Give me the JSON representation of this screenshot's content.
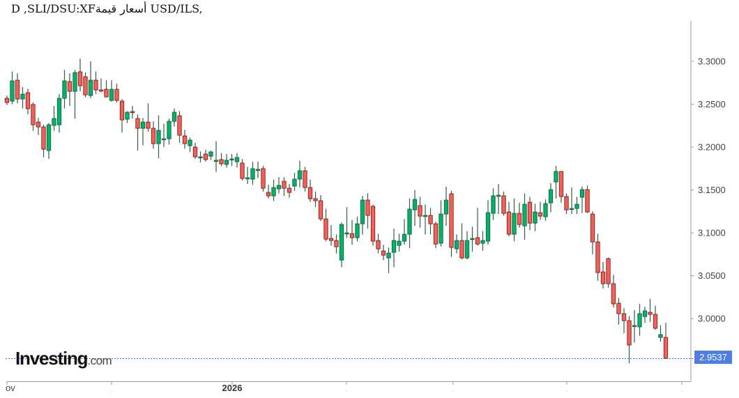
{
  "title": "USD/ILS, قيمة:XF/USD/ILS, D",
  "title_display": "D ,SLI/DSU:XFأسعار قيمة USD/ILS,",
  "logo": {
    "main": "Investing",
    "suffix": ".com"
  },
  "colors": {
    "up": "#00b36b",
    "down": "#f4605a",
    "up_border": "#1e5c3a",
    "down_border": "#7a1f1a",
    "wick": "#2e5e46",
    "price_line": "#3b6fe0",
    "badge": "#4f7de3",
    "axis": "#999999"
  },
  "chart_data": {
    "type": "candlestick",
    "title": "USD/ILS",
    "interval": "D",
    "yticks": [
      "3.3000",
      "3.2500",
      "3.2000",
      "3.1500",
      "3.1000",
      "3.0500",
      "3.0000"
    ],
    "ytick_values": [
      3.3,
      3.25,
      3.2,
      3.15,
      3.1,
      3.05,
      3.0
    ],
    "ylim": [
      2.935,
      3.345
    ],
    "xtick_labels": [
      "ov",
      "",
      "2026",
      "",
      "",
      "",
      ""
    ],
    "last_price": "2.9537",
    "last_price_value": 2.9537,
    "grid": false,
    "candles_ohlc": [
      [
        3.2569,
        3.26,
        3.249,
        3.252
      ],
      [
        3.2536,
        3.288,
        3.25,
        3.2772
      ],
      [
        3.278,
        3.286,
        3.251,
        3.2561
      ],
      [
        3.2561,
        3.27,
        3.245,
        3.2617
      ],
      [
        3.2634,
        3.268,
        3.238,
        3.2447
      ],
      [
        3.2496,
        3.252,
        3.219,
        3.226
      ],
      [
        3.2292,
        3.234,
        3.214,
        3.2235
      ],
      [
        3.2235,
        3.226,
        3.188,
        3.1975
      ],
      [
        3.1959,
        3.228,
        3.186,
        3.226
      ],
      [
        3.2252,
        3.248,
        3.219,
        3.2333
      ],
      [
        3.226,
        3.262,
        3.217,
        3.2569
      ],
      [
        3.2569,
        3.29,
        3.245,
        3.2772
      ],
      [
        3.2764,
        3.286,
        3.248,
        3.265
      ],
      [
        3.265,
        3.29,
        3.233,
        3.2869
      ],
      [
        3.2878,
        3.303,
        3.265,
        3.2715
      ],
      [
        3.2821,
        3.287,
        3.258,
        3.2609
      ],
      [
        3.2601,
        3.3,
        3.257,
        3.278
      ],
      [
        3.278,
        3.288,
        3.262,
        3.2666
      ],
      [
        3.2666,
        3.28,
        3.264,
        3.266
      ],
      [
        3.2674,
        3.278,
        3.258,
        3.2585
      ],
      [
        3.2544,
        3.278,
        3.253,
        3.2674
      ],
      [
        3.2674,
        3.274,
        3.252,
        3.2544
      ],
      [
        3.2536,
        3.256,
        3.217,
        3.2317
      ],
      [
        3.2325,
        3.242,
        3.228,
        3.2406
      ],
      [
        3.2414,
        3.248,
        3.233,
        3.241
      ],
      [
        3.2333,
        3.238,
        3.196,
        3.2219
      ],
      [
        3.2219,
        3.234,
        3.202,
        3.2292
      ],
      [
        3.2292,
        3.251,
        3.218,
        3.2219
      ],
      [
        3.2219,
        3.23,
        3.198,
        3.204
      ],
      [
        3.204,
        3.237,
        3.187,
        3.2195
      ],
      [
        3.2097,
        3.227,
        3.2,
        3.2097
      ],
      [
        3.2097,
        3.233,
        3.203,
        3.23
      ],
      [
        3.23,
        3.245,
        3.224,
        3.2406
      ],
      [
        3.2365,
        3.242,
        3.205,
        3.2138
      ],
      [
        3.213,
        3.22,
        3.198,
        3.204
      ],
      [
        3.2016,
        3.211,
        3.194,
        3.2081
      ],
      [
        3.2,
        3.205,
        3.186,
        3.1886
      ],
      [
        3.1886,
        3.195,
        3.182,
        3.1886
      ],
      [
        3.1919,
        3.197,
        3.183,
        3.1854
      ],
      [
        3.1894,
        3.196,
        3.185,
        3.1943
      ],
      [
        3.1846,
        3.207,
        3.171,
        3.1846
      ],
      [
        3.1854,
        3.193,
        3.178,
        3.1805
      ],
      [
        3.1797,
        3.192,
        3.176,
        3.1846
      ],
      [
        3.1862,
        3.192,
        3.178,
        3.1862
      ],
      [
        3.1829,
        3.193,
        3.176,
        3.1878
      ],
      [
        3.1813,
        3.186,
        3.161,
        3.1634
      ],
      [
        3.1642,
        3.177,
        3.157,
        3.1642
      ],
      [
        3.1626,
        3.183,
        3.156,
        3.1748
      ],
      [
        3.174,
        3.183,
        3.164,
        3.174
      ],
      [
        3.1748,
        3.178,
        3.148,
        3.152
      ],
      [
        3.1471,
        3.156,
        3.14,
        3.1431
      ],
      [
        3.1431,
        3.162,
        3.137,
        3.1528
      ],
      [
        3.1512,
        3.165,
        3.146,
        3.1553
      ],
      [
        3.1601,
        3.165,
        3.143,
        3.152
      ],
      [
        3.152,
        3.157,
        3.141,
        3.1471
      ],
      [
        3.1545,
        3.17,
        3.149,
        3.1626
      ],
      [
        3.1626,
        3.184,
        3.153,
        3.1724
      ],
      [
        3.1724,
        3.177,
        3.148,
        3.1528
      ],
      [
        3.1528,
        3.162,
        3.136,
        3.1398
      ],
      [
        3.1398,
        3.148,
        3.13,
        3.1374
      ],
      [
        3.1374,
        3.144,
        3.114,
        3.1162
      ],
      [
        3.1162,
        3.128,
        3.09,
        3.0926
      ],
      [
        3.0934,
        3.109,
        3.085,
        3.091
      ],
      [
        3.091,
        3.098,
        3.076,
        3.0837
      ],
      [
        3.0682,
        3.112,
        3.06,
        3.1097
      ],
      [
        3.0999,
        3.13,
        3.094,
        3.0999
      ],
      [
        3.0991,
        3.115,
        3.086,
        3.0943
      ],
      [
        3.0943,
        3.119,
        3.09,
        3.1105
      ],
      [
        3.1105,
        3.143,
        3.098,
        3.1382
      ],
      [
        3.1382,
        3.146,
        3.105,
        3.1203
      ],
      [
        3.1309,
        3.133,
        3.085,
        3.0902
      ],
      [
        3.091,
        3.099,
        3.076,
        3.0813
      ],
      [
        3.0788,
        3.086,
        3.068,
        3.0739
      ],
      [
        3.0707,
        3.083,
        3.053,
        3.0764
      ],
      [
        3.0772,
        3.105,
        3.06,
        3.091
      ],
      [
        3.0853,
        3.099,
        3.078,
        3.0902
      ],
      [
        3.0902,
        3.116,
        3.086,
        3.0983
      ],
      [
        3.0983,
        3.14,
        3.082,
        3.1276
      ],
      [
        3.1268,
        3.15,
        3.108,
        3.139
      ],
      [
        3.1317,
        3.142,
        3.106,
        3.1195
      ],
      [
        3.1203,
        3.133,
        3.098,
        3.1203
      ],
      [
        3.1203,
        3.129,
        3.098,
        3.1105
      ],
      [
        3.1105,
        3.113,
        3.082,
        3.0869
      ],
      [
        3.0878,
        3.138,
        3.084,
        3.1219
      ],
      [
        3.1219,
        3.154,
        3.108,
        3.1382
      ],
      [
        3.1455,
        3.149,
        3.072,
        3.0829
      ],
      [
        3.0813,
        3.098,
        3.076,
        3.091
      ],
      [
        3.091,
        3.111,
        3.069,
        3.0707
      ],
      [
        3.0707,
        3.102,
        3.069,
        3.091
      ],
      [
        3.0934,
        3.107,
        3.078,
        3.0934
      ],
      [
        3.0943,
        3.129,
        3.085,
        3.0869
      ],
      [
        3.0878,
        3.102,
        3.079,
        3.091
      ],
      [
        3.0902,
        3.138,
        3.086,
        3.1235
      ],
      [
        3.1227,
        3.152,
        3.115,
        3.1431
      ],
      [
        3.1439,
        3.157,
        3.122,
        3.1439
      ],
      [
        3.1431,
        3.148,
        3.12,
        3.1227
      ],
      [
        3.1243,
        3.136,
        3.096,
        3.0983
      ],
      [
        3.0983,
        3.14,
        3.09,
        3.1227
      ],
      [
        3.1227,
        3.135,
        3.106,
        3.1097
      ],
      [
        3.1081,
        3.146,
        3.092,
        3.1333
      ],
      [
        3.1357,
        3.142,
        3.103,
        3.1113
      ],
      [
        3.1113,
        3.134,
        3.102,
        3.1243
      ],
      [
        3.1235,
        3.136,
        3.115,
        3.1195
      ],
      [
        3.1187,
        3.139,
        3.114,
        3.1341
      ],
      [
        3.1349,
        3.158,
        3.124,
        3.1504
      ],
      [
        3.1593,
        3.178,
        3.14,
        3.1715
      ],
      [
        3.1715,
        3.172,
        3.135,
        3.1423
      ],
      [
        3.1423,
        3.146,
        3.122,
        3.1268
      ],
      [
        3.1276,
        3.153,
        3.122,
        3.1284
      ],
      [
        3.1284,
        3.142,
        3.122,
        3.1333
      ],
      [
        3.1415,
        3.154,
        3.123,
        3.1504
      ],
      [
        3.1504,
        3.155,
        3.123,
        3.1243
      ],
      [
        3.1219,
        3.125,
        3.075,
        3.0894
      ],
      [
        3.0894,
        3.099,
        3.044,
        3.0536
      ],
      [
        3.0544,
        3.066,
        3.035,
        3.0406
      ],
      [
        3.0699,
        3.071,
        3.036,
        3.0406
      ],
      [
        3.0406,
        3.051,
        3.013,
        3.0171
      ],
      [
        3.0179,
        3.024,
        2.993,
        3.0057
      ],
      [
        3.0057,
        3.012,
        2.983,
        2.9975
      ],
      [
        2.9975,
        3.003,
        2.948,
        2.9691
      ],
      [
        2.9919,
        3.01,
        2.972,
        2.9919
      ],
      [
        2.9903,
        3.017,
        2.98,
        3.0057
      ],
      [
        3.0024,
        3.014,
        2.995,
        3.0089
      ],
      [
        3.0073,
        3.023,
        2.996,
        3.0049
      ],
      [
        3.0049,
        3.015,
        2.987,
        2.9886
      ],
      [
        2.978,
        2.992,
        2.973,
        2.9813
      ],
      [
        2.978,
        2.995,
        2.953,
        2.9537
      ]
    ]
  }
}
